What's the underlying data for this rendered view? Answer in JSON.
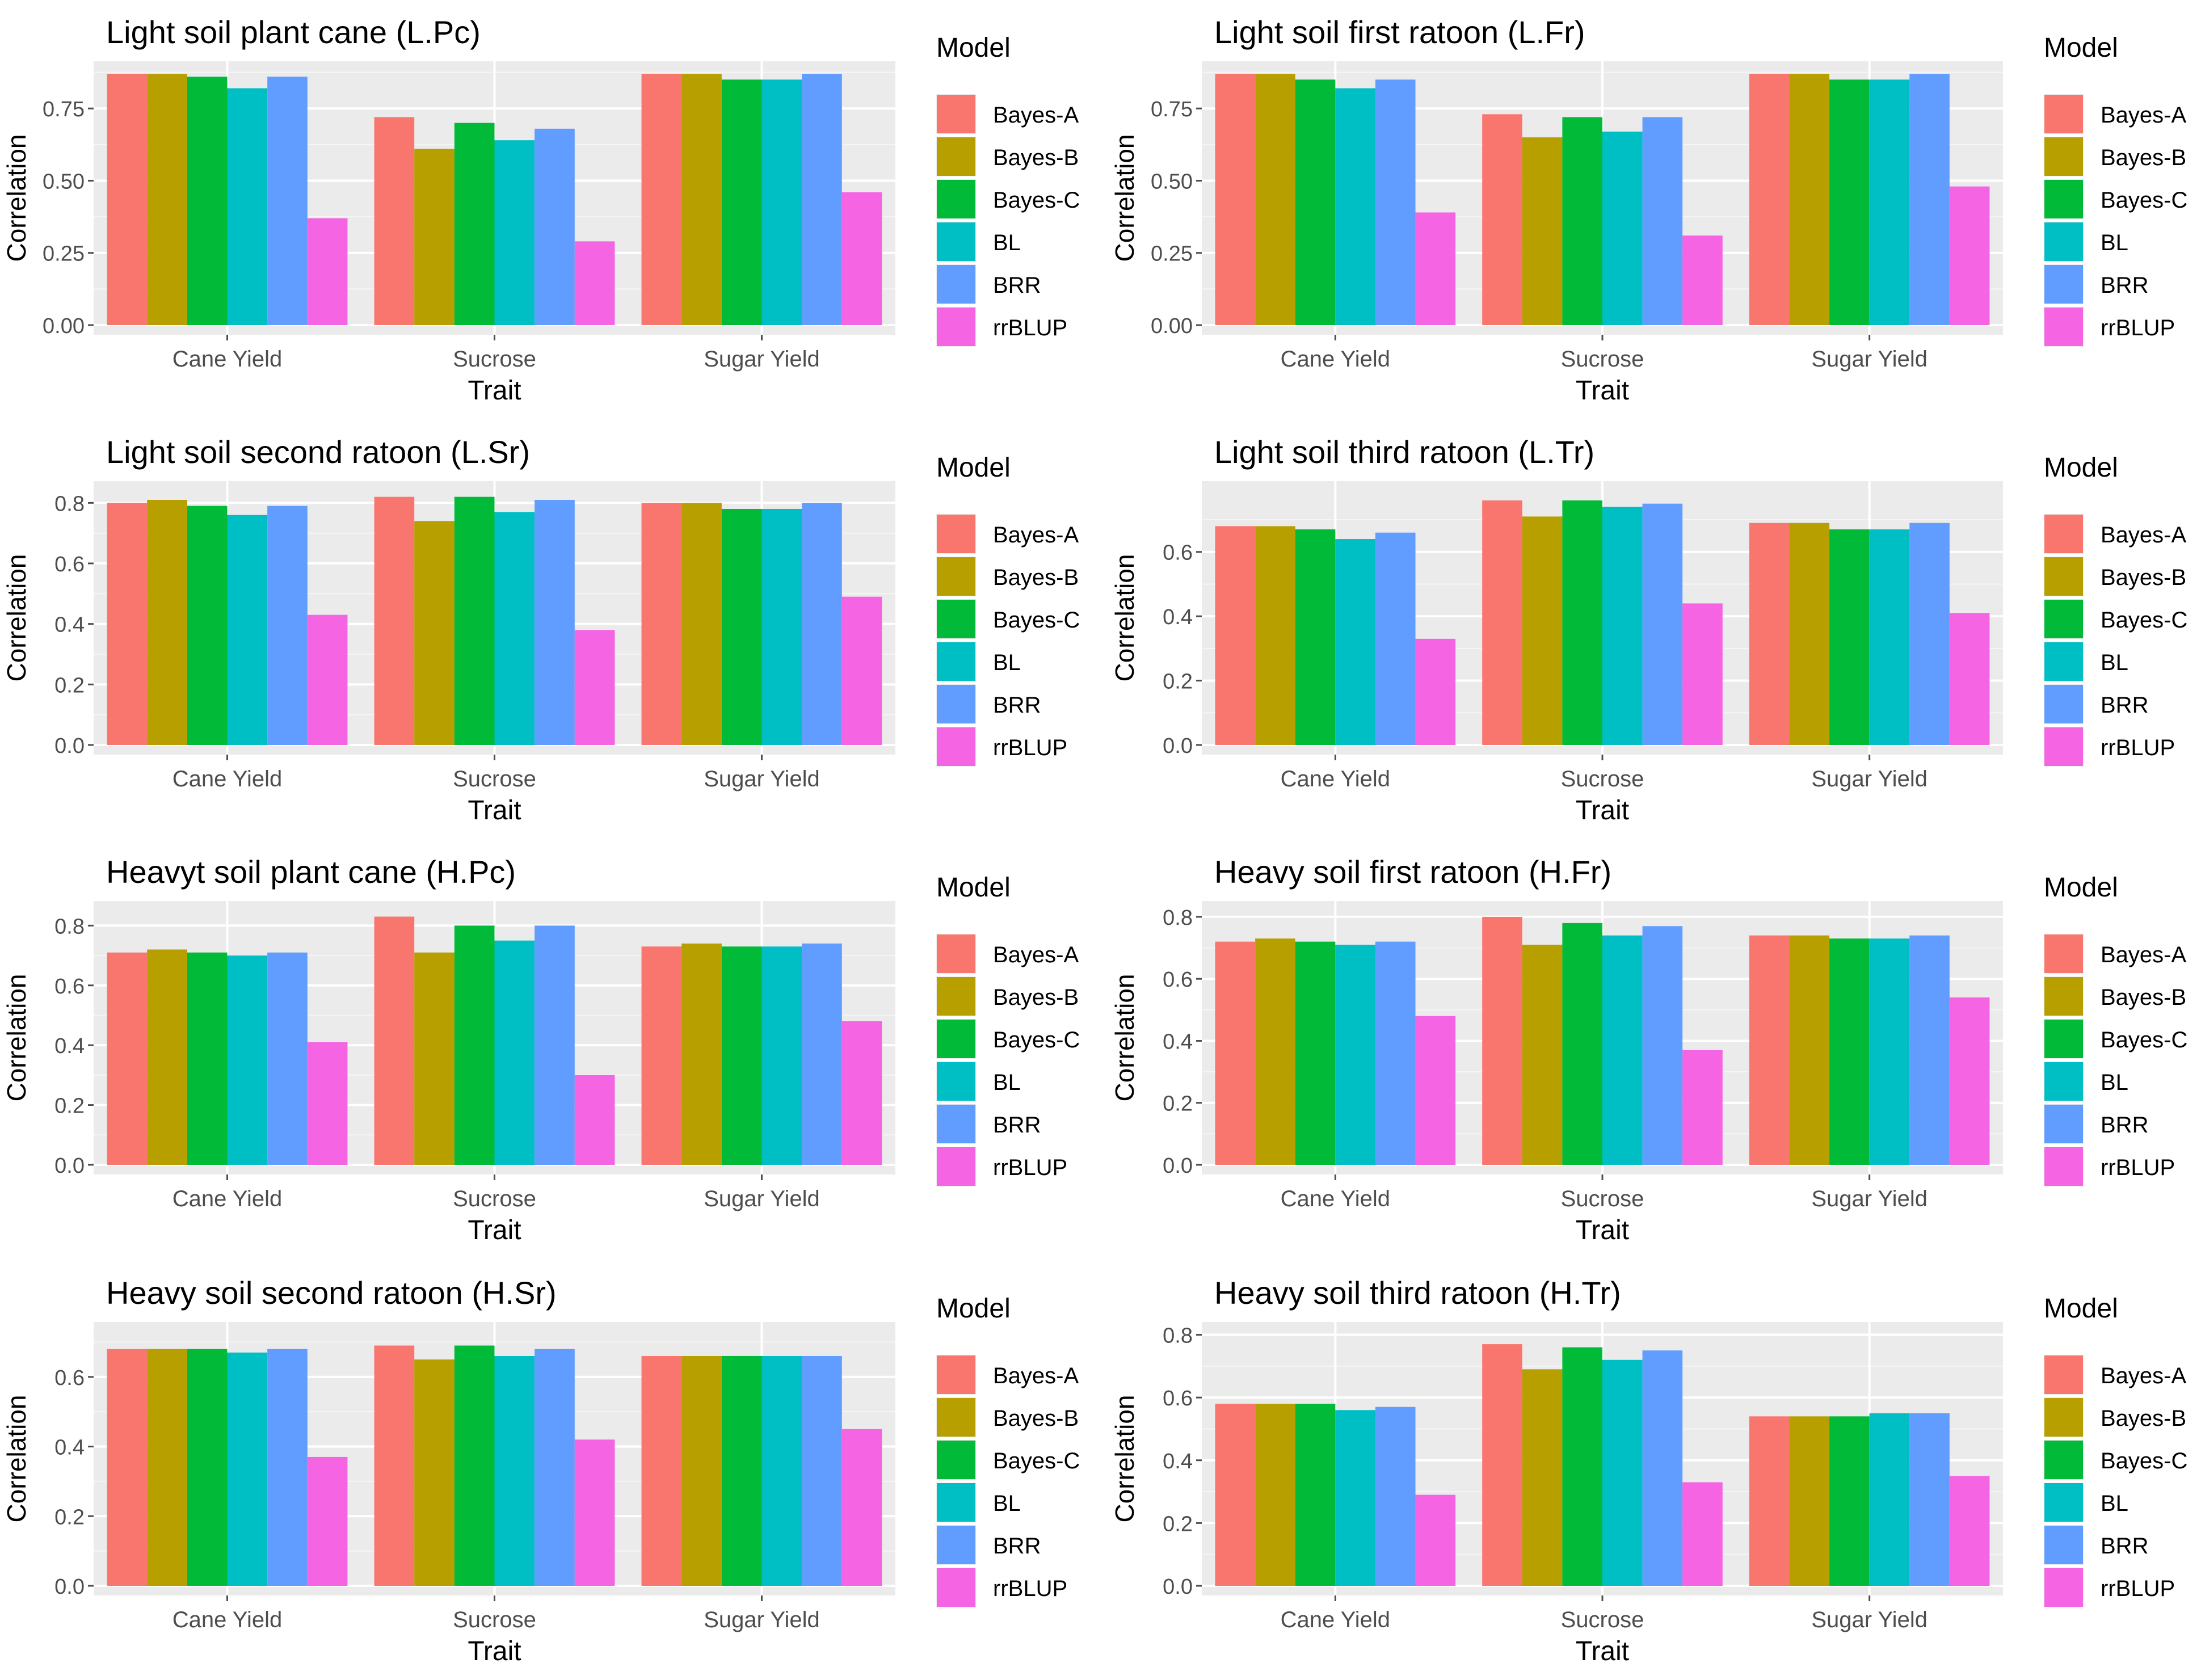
{
  "colors": {
    "panel_bg": "#EBEBEB",
    "grid_major": "#FFFFFF",
    "grid_minor": "#F5F5F5",
    "axis_text": "#4D4D4D",
    "title_text": "#000000"
  },
  "legend": {
    "title": "Model",
    "items": [
      {
        "label": "Bayes-A",
        "color": "#F8766D"
      },
      {
        "label": "Bayes-B",
        "color": "#B79F00"
      },
      {
        "label": "Bayes-C",
        "color": "#00BA38"
      },
      {
        "label": "BL",
        "color": "#00BFC4"
      },
      {
        "label": "BRR",
        "color": "#619CFF"
      },
      {
        "label": "rrBLUP",
        "color": "#F564E3"
      }
    ]
  },
  "chart_data": [
    {
      "type": "bar",
      "title": "Light soil plant cane (L.Pc)",
      "xlabel": "Trait",
      "ylabel": "Correlation",
      "categories": [
        "Cane Yield",
        "Sucrose",
        "Sugar Yield"
      ],
      "ylim": [
        0,
        0.88
      ],
      "yticks": [
        "0.00",
        "0.25",
        "0.50",
        "0.75"
      ],
      "ytick_values": [
        0,
        0.25,
        0.5,
        0.75
      ],
      "series": [
        {
          "name": "Bayes-A",
          "values": [
            0.87,
            0.72,
            0.87
          ]
        },
        {
          "name": "Bayes-B",
          "values": [
            0.87,
            0.61,
            0.87
          ]
        },
        {
          "name": "Bayes-C",
          "values": [
            0.86,
            0.7,
            0.85
          ]
        },
        {
          "name": "BL",
          "values": [
            0.82,
            0.64,
            0.85
          ]
        },
        {
          "name": "BRR",
          "values": [
            0.86,
            0.68,
            0.87
          ]
        },
        {
          "name": "rrBLUP",
          "values": [
            0.37,
            0.29,
            0.46
          ]
        }
      ]
    },
    {
      "type": "bar",
      "title": "Light soil first ratoon (L.Fr)",
      "xlabel": "Trait",
      "ylabel": "Correlation",
      "categories": [
        "Cane Yield",
        "Sucrose",
        "Sugar Yield"
      ],
      "ylim": [
        0,
        0.88
      ],
      "yticks": [
        "0.00",
        "0.25",
        "0.50",
        "0.75"
      ],
      "ytick_values": [
        0,
        0.25,
        0.5,
        0.75
      ],
      "series": [
        {
          "name": "Bayes-A",
          "values": [
            0.87,
            0.73,
            0.87
          ]
        },
        {
          "name": "Bayes-B",
          "values": [
            0.87,
            0.65,
            0.87
          ]
        },
        {
          "name": "Bayes-C",
          "values": [
            0.85,
            0.72,
            0.85
          ]
        },
        {
          "name": "BL",
          "values": [
            0.82,
            0.67,
            0.85
          ]
        },
        {
          "name": "BRR",
          "values": [
            0.85,
            0.72,
            0.87
          ]
        },
        {
          "name": "rrBLUP",
          "values": [
            0.39,
            0.31,
            0.48
          ]
        }
      ]
    },
    {
      "type": "bar",
      "title": "Light soil second ratoon (L.Sr)",
      "xlabel": "Trait",
      "ylabel": "Correlation",
      "categories": [
        "Cane Yield",
        "Sucrose",
        "Sugar Yield"
      ],
      "ylim": [
        0,
        0.84
      ],
      "yticks": [
        "0.0",
        "0.2",
        "0.4",
        "0.6",
        "0.8"
      ],
      "ytick_values": [
        0,
        0.2,
        0.4,
        0.6,
        0.8
      ],
      "series": [
        {
          "name": "Bayes-A",
          "values": [
            0.8,
            0.82,
            0.8
          ]
        },
        {
          "name": "Bayes-B",
          "values": [
            0.81,
            0.74,
            0.8
          ]
        },
        {
          "name": "Bayes-C",
          "values": [
            0.79,
            0.82,
            0.78
          ]
        },
        {
          "name": "BL",
          "values": [
            0.76,
            0.77,
            0.78
          ]
        },
        {
          "name": "BRR",
          "values": [
            0.79,
            0.81,
            0.8
          ]
        },
        {
          "name": "rrBLUP",
          "values": [
            0.43,
            0.38,
            0.49
          ]
        }
      ]
    },
    {
      "type": "bar",
      "title": "Light soil third ratoon (L.Tr)",
      "xlabel": "Trait",
      "ylabel": "Correlation",
      "categories": [
        "Cane Yield",
        "Sucrose",
        "Sugar Yield"
      ],
      "ylim": [
        0,
        0.79
      ],
      "yticks": [
        "0.0",
        "0.2",
        "0.4",
        "0.6"
      ],
      "ytick_values": [
        0,
        0.2,
        0.4,
        0.6
      ],
      "series": [
        {
          "name": "Bayes-A",
          "values": [
            0.68,
            0.76,
            0.69
          ]
        },
        {
          "name": "Bayes-B",
          "values": [
            0.68,
            0.71,
            0.69
          ]
        },
        {
          "name": "Bayes-C",
          "values": [
            0.67,
            0.76,
            0.67
          ]
        },
        {
          "name": "BL",
          "values": [
            0.64,
            0.74,
            0.67
          ]
        },
        {
          "name": "BRR",
          "values": [
            0.66,
            0.75,
            0.69
          ]
        },
        {
          "name": "rrBLUP",
          "values": [
            0.33,
            0.44,
            0.41
          ]
        }
      ]
    },
    {
      "type": "bar",
      "title": "Heavyt soil plant cane (H.Pc)",
      "xlabel": "Trait",
      "ylabel": "Correlation",
      "categories": [
        "Cane Yield",
        "Sucrose",
        "Sugar Yield"
      ],
      "ylim": [
        0,
        0.85
      ],
      "yticks": [
        "0.0",
        "0.2",
        "0.4",
        "0.6",
        "0.8"
      ],
      "ytick_values": [
        0,
        0.2,
        0.4,
        0.6,
        0.8
      ],
      "series": [
        {
          "name": "Bayes-A",
          "values": [
            0.71,
            0.83,
            0.73
          ]
        },
        {
          "name": "Bayes-B",
          "values": [
            0.72,
            0.71,
            0.74
          ]
        },
        {
          "name": "Bayes-C",
          "values": [
            0.71,
            0.8,
            0.73
          ]
        },
        {
          "name": "BL",
          "values": [
            0.7,
            0.75,
            0.73
          ]
        },
        {
          "name": "BRR",
          "values": [
            0.71,
            0.8,
            0.74
          ]
        },
        {
          "name": "rrBLUP",
          "values": [
            0.41,
            0.3,
            0.48
          ]
        }
      ]
    },
    {
      "type": "bar",
      "title": "Heavy soil first ratoon (H.Fr)",
      "xlabel": "Trait",
      "ylabel": "Correlation",
      "categories": [
        "Cane Yield",
        "Sucrose",
        "Sugar Yield"
      ],
      "ylim": [
        0,
        0.82
      ],
      "yticks": [
        "0.0",
        "0.2",
        "0.4",
        "0.6",
        "0.8"
      ],
      "ytick_values": [
        0,
        0.2,
        0.4,
        0.6,
        0.8
      ],
      "series": [
        {
          "name": "Bayes-A",
          "values": [
            0.72,
            0.8,
            0.74
          ]
        },
        {
          "name": "Bayes-B",
          "values": [
            0.73,
            0.71,
            0.74
          ]
        },
        {
          "name": "Bayes-C",
          "values": [
            0.72,
            0.78,
            0.73
          ]
        },
        {
          "name": "BL",
          "values": [
            0.71,
            0.74,
            0.73
          ]
        },
        {
          "name": "BRR",
          "values": [
            0.72,
            0.77,
            0.74
          ]
        },
        {
          "name": "rrBLUP",
          "values": [
            0.48,
            0.37,
            0.54
          ]
        }
      ]
    },
    {
      "type": "bar",
      "title": "Heavy soil second ratoon (H.Sr)",
      "xlabel": "Trait",
      "ylabel": "Correlation",
      "categories": [
        "Cane Yield",
        "Sucrose",
        "Sugar Yield"
      ],
      "ylim": [
        0,
        0.73
      ],
      "yticks": [
        "0.0",
        "0.2",
        "0.4",
        "0.6"
      ],
      "ytick_values": [
        0,
        0.2,
        0.4,
        0.6
      ],
      "series": [
        {
          "name": "Bayes-A",
          "values": [
            0.68,
            0.69,
            0.66
          ]
        },
        {
          "name": "Bayes-B",
          "values": [
            0.68,
            0.65,
            0.66
          ]
        },
        {
          "name": "Bayes-C",
          "values": [
            0.68,
            0.69,
            0.66
          ]
        },
        {
          "name": "BL",
          "values": [
            0.67,
            0.66,
            0.66
          ]
        },
        {
          "name": "BRR",
          "values": [
            0.68,
            0.68,
            0.66
          ]
        },
        {
          "name": "rrBLUP",
          "values": [
            0.37,
            0.42,
            0.45
          ]
        }
      ]
    },
    {
      "type": "bar",
      "title": "Heavy soil third ratoon (H.Tr)",
      "xlabel": "Trait",
      "ylabel": "Correlation",
      "categories": [
        "Cane Yield",
        "Sucrose",
        "Sugar Yield"
      ],
      "ylim": [
        0,
        0.81
      ],
      "yticks": [
        "0.0",
        "0.2",
        "0.4",
        "0.6",
        "0.8"
      ],
      "ytick_values": [
        0,
        0.2,
        0.4,
        0.6,
        0.8
      ],
      "series": [
        {
          "name": "Bayes-A",
          "values": [
            0.58,
            0.77,
            0.54
          ]
        },
        {
          "name": "Bayes-B",
          "values": [
            0.58,
            0.69,
            0.54
          ]
        },
        {
          "name": "Bayes-C",
          "values": [
            0.58,
            0.76,
            0.54
          ]
        },
        {
          "name": "BL",
          "values": [
            0.56,
            0.72,
            0.55
          ]
        },
        {
          "name": "BRR",
          "values": [
            0.57,
            0.75,
            0.55
          ]
        },
        {
          "name": "rrBLUP",
          "values": [
            0.29,
            0.33,
            0.35
          ]
        }
      ]
    }
  ]
}
